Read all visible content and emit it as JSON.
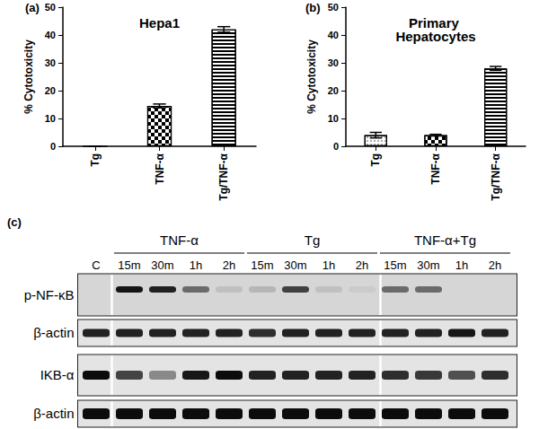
{
  "chart_data": [
    {
      "type": "bar",
      "annotations": [
        "(a)"
      ],
      "title": "Hepa1",
      "categories": [
        "Tg",
        "TNF-α",
        "Tg/TNF-α"
      ],
      "values": [
        0,
        14.5,
        42
      ],
      "errors": [
        0,
        0.7,
        1
      ],
      "color": "#ffffff",
      "ylabel": "% Cytotoxicity",
      "ylim": [
        0,
        50
      ],
      "yticks": [
        0,
        10,
        20,
        30,
        40,
        50
      ]
    },
    {
      "type": "bar",
      "annotations": [
        "(b)"
      ],
      "title": "Primary Hepatocytes",
      "categories": [
        "Tg",
        "TNF-α",
        "Tg/TNF-α"
      ],
      "values": [
        4,
        4,
        28
      ],
      "errors": [
        1,
        0.3,
        0.7
      ],
      "color": "#ffffff",
      "ylabel": "% Cytotoxicity",
      "ylim": [
        0,
        50
      ],
      "yticks": [
        0,
        10,
        20,
        30,
        40,
        50
      ]
    }
  ],
  "panel_c": {
    "label": "(c)",
    "control": "C",
    "groups": [
      {
        "label": "TNF-α",
        "lanes": [
          "15m",
          "30m",
          "1h",
          "2h"
        ]
      },
      {
        "label": "Tg",
        "lanes": [
          "15m",
          "30m",
          "1h",
          "2h"
        ]
      },
      {
        "label": "TNF-α+Tg",
        "lanes": [
          "15m",
          "30m",
          "1h",
          "2h"
        ]
      }
    ],
    "rows": [
      {
        "label": "p-NF-κB",
        "intensities": [
          0,
          0.9,
          0.85,
          0.5,
          0.1,
          0.15,
          0.7,
          0.1,
          0.05,
          0.5,
          0.5,
          0,
          0
        ]
      },
      {
        "label": "β-actin",
        "intensities": [
          0.85,
          0.85,
          0.85,
          0.85,
          0.85,
          0.8,
          0.85,
          0.85,
          0.85,
          0.85,
          0.85,
          0.9,
          0.85
        ]
      },
      {
        "label": "IKB-α",
        "intensities": [
          0.95,
          0.7,
          0.4,
          0.9,
          0.95,
          0.85,
          0.85,
          0.85,
          0.85,
          0.8,
          0.75,
          0.65,
          0.8
        ]
      },
      {
        "label": "β-actin",
        "intensities": [
          0.95,
          0.95,
          0.95,
          0.95,
          0.95,
          0.95,
          0.95,
          0.95,
          0.95,
          0.95,
          0.95,
          0.95,
          0.95
        ]
      }
    ]
  }
}
